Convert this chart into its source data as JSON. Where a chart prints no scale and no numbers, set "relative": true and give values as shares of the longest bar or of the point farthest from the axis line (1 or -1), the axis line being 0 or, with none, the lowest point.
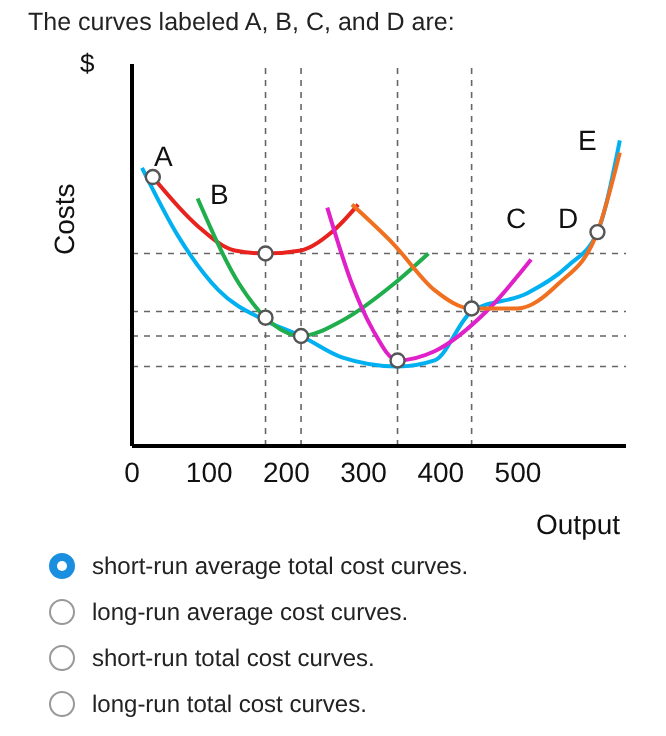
{
  "chart_data": {
    "type": "line",
    "title": "The curves labeled A, B, C, and D are:",
    "xlabel": "Output",
    "ylabel": "Costs",
    "relative": true,
    "xlim": [
      0,
      640
    ],
    "xticks": [
      0,
      100,
      200,
      300,
      400,
      500
    ],
    "grid": false,
    "line_style": "solid",
    "series": [
      {
        "color": "#00b0f0",
        "values": [
          0.91,
          0.69,
          0.51,
          0.41,
          0.36,
          0.29,
          0.26,
          0.28,
          0.44,
          0.5,
          0.59,
          0.7,
          1
        ],
        "x": [
          13,
          59,
          112,
          173,
          219,
          272,
          344,
          392,
          440,
          512,
          565,
          603,
          632
        ]
      },
      {
        "color": "#e8231e",
        "values": [
          0.88,
          0.72,
          0.64,
          0.63,
          0.64,
          0.7,
          0.79
        ],
        "x": [
          27,
          85,
          133,
          173,
          219,
          259,
          293
        ]
      },
      {
        "color": "#1fae4b",
        "values": [
          0.81,
          0.53,
          0.42,
          0.36,
          0.41,
          0.53,
          0.63
        ],
        "x": [
          85,
          139,
          173,
          219,
          272,
          339,
          384
        ]
      },
      {
        "color": "#e020c8",
        "values": [
          0.78,
          0.53,
          0.38,
          0.28,
          0.31,
          0.44,
          0.61
        ],
        "x": [
          253,
          285,
          312,
          344,
          392,
          459,
          517
        ]
      },
      {
        "color": "#f07020",
        "values": [
          0.79,
          0.66,
          0.51,
          0.45,
          0.45,
          0.53,
          0.7,
          0.96
        ],
        "x": [
          285,
          339,
          392,
          440,
          499,
          552,
          603,
          632
        ]
      },
      {
        "type": "scatter",
        "marker": "circle",
        "color": "#555555",
        "values": [
          0.88,
          0.63,
          0.42,
          0.36,
          0.28,
          0.45,
          0.7
        ],
        "x": [
          27,
          173,
          173,
          219,
          344,
          440,
          603
        ]
      }
    ],
    "ref_lines": [
      {
        "axis": "y",
        "value": 0.63,
        "color": "#666666",
        "line_style": "dashed"
      },
      {
        "axis": "y",
        "value": 0.44,
        "color": "#666666",
        "line_style": "dashed"
      },
      {
        "axis": "y",
        "value": 0.36,
        "color": "#666666",
        "line_style": "dashed"
      },
      {
        "axis": "y",
        "value": 0.26,
        "color": "#666666",
        "line_style": "dashed"
      },
      {
        "axis": "x",
        "value": 173,
        "color": "#666666",
        "line_style": "dashed"
      },
      {
        "axis": "x",
        "value": 219,
        "color": "#666666",
        "line_style": "dashed"
      },
      {
        "axis": "x",
        "value": 344,
        "color": "#666666",
        "line_style": "dashed"
      },
      {
        "axis": "x",
        "value": 440,
        "color": "#666666",
        "line_style": "dashed"
      }
    ],
    "annotations": [
      "A",
      "B",
      "C",
      "D",
      "E",
      "$",
      "short-run average total cost curves.",
      "long-run average cost curves.",
      "short-run total cost curves.",
      "long-run total cost curves."
    ]
  }
}
